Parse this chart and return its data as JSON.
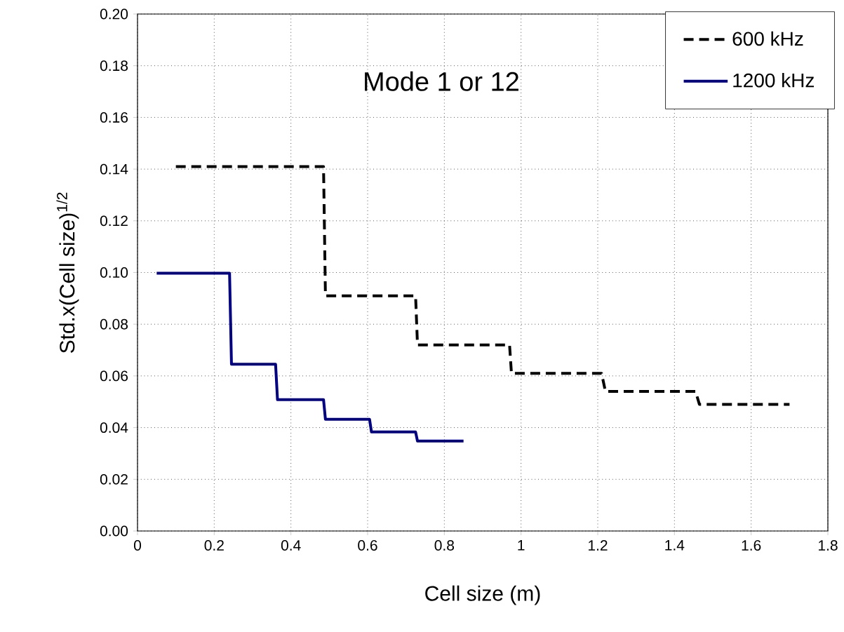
{
  "chart_data": {
    "type": "line",
    "title": "Mode 1 or 12",
    "xlabel": "Cell size (m)",
    "ylabel": "Std.x(Cell size)$^{1/2}$",
    "xlim": [
      0,
      1.8
    ],
    "xticks": [
      0,
      0.2,
      0.4,
      0.6,
      0.8,
      1,
      1.2,
      1.4,
      1.6,
      1.8
    ],
    "ylim": [
      0,
      0.2
    ],
    "yticks": [
      {
        "value": 0,
        "label": "0.00"
      },
      {
        "value": 0.02,
        "label": "0.02"
      },
      {
        "value": 0.04,
        "label": "0.04"
      },
      {
        "value": 0.06,
        "label": "0.06"
      },
      {
        "value": 0.08,
        "label": "0.08"
      },
      {
        "value": 0.1,
        "label": "0.10"
      },
      {
        "value": 0.12,
        "label": "0.12"
      },
      {
        "value": 0.14,
        "label": "0.14"
      },
      {
        "value": 0.16,
        "label": "0.16"
      },
      {
        "value": 0.18,
        "label": "0.18"
      },
      {
        "value": 0.2,
        "label": "0.20"
      }
    ],
    "grid": true,
    "legend": "top right",
    "marker": "none",
    "series": [
      {
        "name": "600 kHz",
        "color": "#000000",
        "line_style": "dashed",
        "x": [
          0.1,
          0.485,
          0.49,
          0.725,
          0.73,
          0.97,
          0.975,
          1.21,
          1.22,
          1.455,
          1.465,
          1.7
        ],
        "values": [
          0.141,
          0.141,
          0.091,
          0.091,
          0.072,
          0.072,
          0.061,
          0.061,
          0.054,
          0.054,
          0.049,
          0.049
        ]
      },
      {
        "name": "1200 kHz",
        "color": "#000080",
        "line_style": "solid",
        "x": [
          0.05,
          0.24,
          0.245,
          0.36,
          0.365,
          0.485,
          0.49,
          0.605,
          0.61,
          0.725,
          0.73,
          0.85
        ],
        "values": [
          0.0997,
          0.0997,
          0.0645,
          0.0645,
          0.0508,
          0.0508,
          0.0432,
          0.0432,
          0.0383,
          0.0383,
          0.0348,
          0.0348
        ]
      }
    ]
  }
}
